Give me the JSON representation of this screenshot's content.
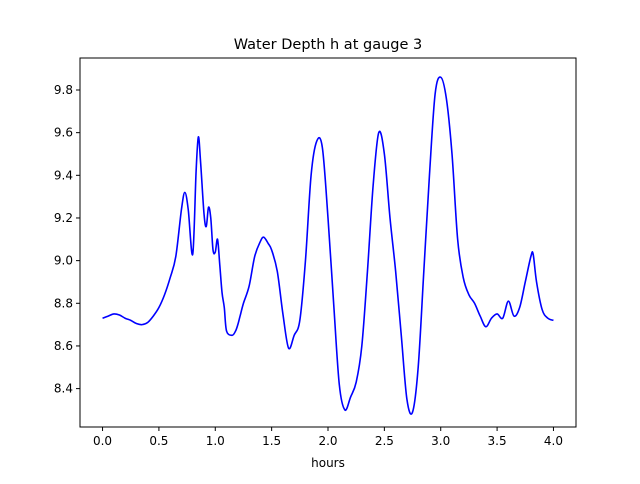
{
  "chart_data": {
    "type": "line",
    "title": "Water Depth h at gauge 3",
    "xlabel": "hours",
    "ylabel": "",
    "xlim": [
      -0.2,
      4.2
    ],
    "ylim": [
      8.22,
      9.95
    ],
    "x_ticks": [
      0.0,
      0.5,
      1.0,
      1.5,
      2.0,
      2.5,
      3.0,
      3.5,
      4.0
    ],
    "x_tick_labels": [
      "0.0",
      "0.5",
      "1.0",
      "1.5",
      "2.0",
      "2.5",
      "3.0",
      "3.5",
      "4.0"
    ],
    "y_ticks": [
      8.4,
      8.6,
      8.8,
      9.0,
      9.2,
      9.4,
      9.6,
      9.8
    ],
    "y_tick_labels": [
      "8.4",
      "8.6",
      "8.8",
      "9.0",
      "9.2",
      "9.4",
      "9.6",
      "9.8"
    ],
    "grid": false,
    "series": [
      {
        "color": "#0000ff",
        "x": [
          0.0,
          0.05,
          0.1,
          0.15,
          0.2,
          0.25,
          0.3,
          0.35,
          0.4,
          0.45,
          0.5,
          0.55,
          0.6,
          0.65,
          0.7,
          0.73,
          0.76,
          0.8,
          0.83,
          0.85,
          0.87,
          0.9,
          0.92,
          0.94,
          0.96,
          0.98,
          1.0,
          1.02,
          1.04,
          1.06,
          1.08,
          1.1,
          1.15,
          1.18,
          1.2,
          1.22,
          1.25,
          1.3,
          1.35,
          1.4,
          1.43,
          1.47,
          1.5,
          1.55,
          1.6,
          1.65,
          1.7,
          1.75,
          1.8,
          1.85,
          1.9,
          1.95,
          2.0,
          2.05,
          2.1,
          2.15,
          2.2,
          2.25,
          2.3,
          2.35,
          2.4,
          2.45,
          2.5,
          2.55,
          2.6,
          2.65,
          2.7,
          2.75,
          2.8,
          2.85,
          2.9,
          2.95,
          3.0,
          3.05,
          3.1,
          3.15,
          3.2,
          3.25,
          3.3,
          3.35,
          3.4,
          3.45,
          3.5,
          3.55,
          3.6,
          3.65,
          3.7,
          3.75,
          3.8,
          3.82,
          3.85,
          3.9,
          3.95,
          4.0
        ],
        "values": [
          8.73,
          8.74,
          8.75,
          8.745,
          8.73,
          8.72,
          8.705,
          8.7,
          8.71,
          8.74,
          8.78,
          8.84,
          8.92,
          9.02,
          9.24,
          9.32,
          9.24,
          9.03,
          9.42,
          9.58,
          9.46,
          9.22,
          9.16,
          9.25,
          9.2,
          9.05,
          9.04,
          9.1,
          8.98,
          8.85,
          8.78,
          8.67,
          8.65,
          8.67,
          8.7,
          8.74,
          8.8,
          8.88,
          9.02,
          9.09,
          9.11,
          9.08,
          9.05,
          8.95,
          8.75,
          8.59,
          8.65,
          8.72,
          9.0,
          9.4,
          9.56,
          9.53,
          9.2,
          8.8,
          8.42,
          8.3,
          8.36,
          8.43,
          8.6,
          8.95,
          9.35,
          9.6,
          9.5,
          9.2,
          8.95,
          8.65,
          8.35,
          8.29,
          8.5,
          8.95,
          9.4,
          9.78,
          9.86,
          9.76,
          9.5,
          9.1,
          8.92,
          8.84,
          8.8,
          8.74,
          8.69,
          8.73,
          8.75,
          8.73,
          8.81,
          8.74,
          8.78,
          8.9,
          9.02,
          9.03,
          8.9,
          8.77,
          8.73,
          8.72
        ]
      }
    ]
  }
}
